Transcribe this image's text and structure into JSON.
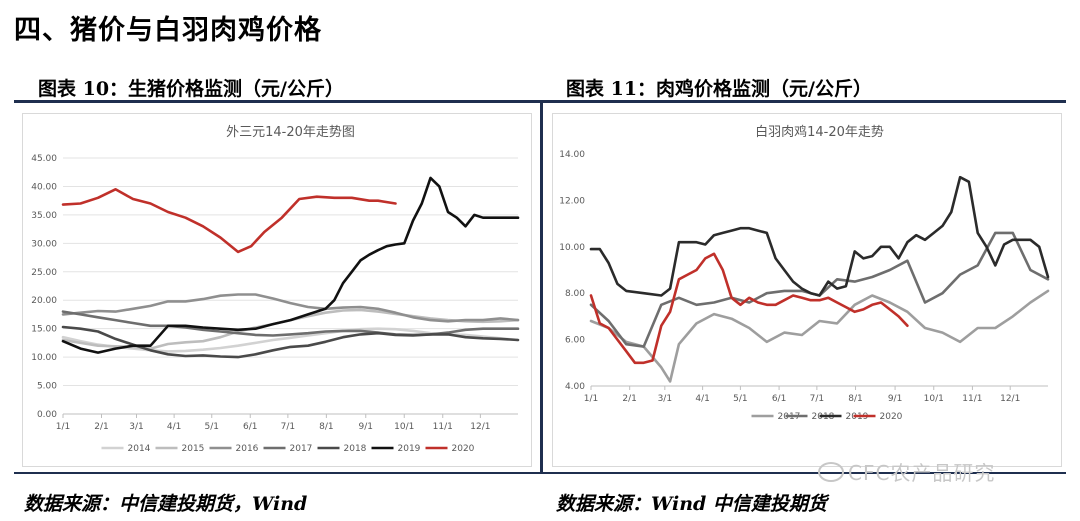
{
  "page": {
    "section_title": "四、猪价与白羽肉鸡价格",
    "watermark": "CFC农产品研究"
  },
  "figures": [
    {
      "caption": "图表 10：生猪价格监测（元/公斤）",
      "source": "数据来源：中信建投期货，Wind"
    },
    {
      "caption": "图表 11：肉鸡价格监测（元/公斤）",
      "source": "数据来源：Wind 中信建投期货"
    }
  ],
  "chart_data": [
    {
      "type": "line",
      "title": "外三元14-20年走势图",
      "ylim": [
        0,
        45
      ],
      "yticks": [
        "0.00",
        "5.00",
        "10.00",
        "15.00",
        "20.00",
        "25.00",
        "30.00",
        "35.00",
        "40.00",
        "45.00"
      ],
      "x_range": [
        0,
        52
      ],
      "xticks": [
        {
          "label": "1/1",
          "x": 0
        },
        {
          "label": "2/1",
          "x": 4.4
        },
        {
          "label": "3/1",
          "x": 8.4
        },
        {
          "label": "4/1",
          "x": 12.7
        },
        {
          "label": "5/1",
          "x": 17
        },
        {
          "label": "6/1",
          "x": 21.4
        },
        {
          "label": "7/1",
          "x": 25.7
        },
        {
          "label": "8/1",
          "x": 30.1
        },
        {
          "label": "9/1",
          "x": 34.6
        },
        {
          "label": "10/1",
          "x": 39
        },
        {
          "label": "11/1",
          "x": 43.4
        },
        {
          "label": "12/1",
          "x": 47.7
        }
      ],
      "grid": true,
      "legend": "bottom",
      "series": [
        {
          "name": "2014",
          "color": "#d2d2d2",
          "x": [
            0,
            2,
            4,
            6,
            8,
            10,
            12,
            14,
            16,
            18,
            20,
            22,
            24,
            26,
            28,
            30,
            32,
            34,
            36,
            38,
            40,
            42,
            44,
            46,
            48,
            50,
            52
          ],
          "values": [
            13.5,
            12.8,
            12.2,
            11.8,
            11.5,
            11.2,
            11.0,
            11.1,
            11.3,
            11.6,
            12.0,
            12.5,
            13.0,
            13.4,
            13.8,
            14.2,
            14.6,
            14.9,
            15.0,
            14.9,
            14.6,
            14.2,
            14.0,
            13.9,
            13.6,
            13.3,
            13.0
          ]
        },
        {
          "name": "2015",
          "color": "#bdbdbd",
          "x": [
            0,
            2,
            4,
            6,
            8,
            10,
            12,
            14,
            16,
            18,
            20,
            22,
            24,
            26,
            28,
            30,
            32,
            34,
            36,
            38,
            40,
            42,
            44,
            46,
            48,
            50,
            52
          ],
          "values": [
            13.0,
            12.5,
            12.0,
            11.9,
            11.8,
            11.5,
            12.3,
            12.6,
            12.8,
            13.5,
            14.5,
            15.2,
            15.8,
            16.5,
            17.2,
            17.8,
            18.2,
            18.3,
            18.0,
            17.6,
            17.2,
            16.8,
            16.5,
            16.3,
            16.2,
            16.3,
            16.5
          ]
        },
        {
          "name": "2016",
          "color": "#8f8f8f",
          "x": [
            0,
            2,
            4,
            6,
            8,
            10,
            12,
            14,
            16,
            18,
            20,
            22,
            24,
            26,
            28,
            30,
            32,
            34,
            36,
            38,
            40,
            42,
            44,
            46,
            48,
            50,
            52
          ],
          "values": [
            17.5,
            17.8,
            18.1,
            18.0,
            18.5,
            19.0,
            19.8,
            19.8,
            20.2,
            20.8,
            21.0,
            21.0,
            20.3,
            19.5,
            18.8,
            18.5,
            18.7,
            18.8,
            18.5,
            17.8,
            17.0,
            16.5,
            16.3,
            16.5,
            16.5,
            16.8,
            16.5
          ]
        },
        {
          "name": "2017",
          "color": "#6e6e6e",
          "x": [
            0,
            2,
            4,
            6,
            8,
            10,
            12,
            14,
            16,
            18,
            20,
            22,
            24,
            26,
            28,
            30,
            32,
            34,
            36,
            38,
            40,
            42,
            44,
            46,
            48,
            50,
            52
          ],
          "values": [
            18.0,
            17.5,
            17.0,
            16.5,
            16.0,
            15.5,
            15.5,
            15.2,
            14.8,
            14.5,
            14.2,
            13.9,
            13.8,
            14.0,
            14.2,
            14.5,
            14.6,
            14.6,
            14.3,
            14.0,
            13.9,
            14.0,
            14.3,
            14.8,
            15.0,
            15.0,
            15.0
          ]
        },
        {
          "name": "2018",
          "color": "#4a4a4a",
          "x": [
            0,
            2,
            4,
            6,
            8,
            10,
            12,
            14,
            16,
            18,
            20,
            22,
            24,
            26,
            28,
            30,
            32,
            34,
            36,
            38,
            40,
            42,
            44,
            46,
            48,
            50,
            52
          ],
          "values": [
            15.3,
            15.0,
            14.5,
            13.2,
            12.2,
            11.2,
            10.5,
            10.2,
            10.3,
            10.1,
            10.0,
            10.5,
            11.2,
            11.8,
            12.0,
            12.7,
            13.5,
            14.0,
            14.2,
            13.9,
            13.8,
            14.0,
            14.0,
            13.5,
            13.3,
            13.2,
            13.0
          ]
        },
        {
          "name": "2019",
          "color": "#111111",
          "x": [
            0,
            2,
            4,
            6,
            8,
            10,
            12,
            14,
            16,
            18,
            20,
            22,
            24,
            26,
            28,
            30,
            31,
            32,
            33,
            34,
            35,
            36,
            37,
            38,
            39,
            40,
            41,
            42,
            43,
            44,
            45,
            46,
            47,
            48,
            49,
            50,
            51,
            52
          ],
          "values": [
            12.8,
            11.5,
            10.8,
            11.5,
            12.0,
            12.0,
            15.5,
            15.5,
            15.2,
            15.0,
            14.8,
            15.0,
            15.8,
            16.5,
            17.5,
            18.5,
            20.0,
            23.0,
            25.0,
            27.0,
            28.0,
            28.8,
            29.5,
            29.8,
            30.0,
            34.0,
            37.0,
            41.5,
            40.0,
            35.5,
            34.5,
            33.0,
            35.0,
            34.5,
            34.5,
            34.5,
            34.5,
            34.5
          ]
        },
        {
          "name": "2020",
          "color": "#c0302a",
          "x": [
            0,
            2,
            4,
            6,
            8,
            10,
            12,
            14,
            16,
            18,
            20,
            21.5,
            23,
            25,
            27,
            29,
            31,
            33,
            35,
            36,
            38
          ],
          "values": [
            36.8,
            37.0,
            38.0,
            39.5,
            37.8,
            37.0,
            35.5,
            34.5,
            33.0,
            31.0,
            28.5,
            29.5,
            32.0,
            34.5,
            37.8,
            38.2,
            38.0,
            38.0,
            37.5,
            37.5,
            37.0
          ]
        }
      ]
    },
    {
      "type": "line",
      "title": "白羽肉鸡14-20年走势",
      "ylim": [
        4,
        14
      ],
      "yticks": [
        "4.00",
        "6.00",
        "8.00",
        "10.00",
        "12.00",
        "14.00"
      ],
      "x_range": [
        0,
        52
      ],
      "xticks": [
        {
          "label": "1/1",
          "x": 0
        },
        {
          "label": "2/1",
          "x": 4.4
        },
        {
          "label": "3/1",
          "x": 8.4
        },
        {
          "label": "4/1",
          "x": 12.7
        },
        {
          "label": "5/1",
          "x": 17
        },
        {
          "label": "6/1",
          "x": 21.4
        },
        {
          "label": "7/1",
          "x": 25.7
        },
        {
          "label": "8/1",
          "x": 30.1
        },
        {
          "label": "9/1",
          "x": 34.6
        },
        {
          "label": "10/1",
          "x": 39
        },
        {
          "label": "11/1",
          "x": 43.4
        },
        {
          "label": "12/1",
          "x": 47.7
        }
      ],
      "grid": false,
      "legend": "bottom",
      "series": [
        {
          "name": "2017",
          "color": "#9e9e9e",
          "x": [
            0,
            2,
            4,
            6,
            8,
            9,
            10,
            12,
            14,
            16,
            18,
            20,
            22,
            24,
            26,
            28,
            30,
            32,
            34,
            36,
            38,
            40,
            42,
            44,
            46,
            48,
            50,
            52
          ],
          "values": [
            6.8,
            6.5,
            5.9,
            5.7,
            4.8,
            4.2,
            5.8,
            6.7,
            7.1,
            6.9,
            6.5,
            5.9,
            6.3,
            6.2,
            6.8,
            6.7,
            7.5,
            7.9,
            7.6,
            7.2,
            6.5,
            6.3,
            5.9,
            6.5,
            6.5,
            7.0,
            7.6,
            8.1
          ]
        },
        {
          "name": "2018",
          "color": "#6e6e6e",
          "x": [
            0,
            2,
            4,
            6,
            8,
            10,
            12,
            14,
            16,
            18,
            20,
            22,
            24,
            26,
            28,
            30,
            32,
            34,
            36,
            38,
            40,
            42,
            44,
            46,
            48,
            50,
            52
          ],
          "values": [
            7.5,
            6.8,
            5.8,
            5.7,
            7.5,
            7.8,
            7.5,
            7.6,
            7.8,
            7.6,
            8.0,
            8.1,
            8.1,
            7.9,
            8.6,
            8.5,
            8.7,
            9.0,
            9.4,
            7.6,
            8.0,
            8.8,
            9.2,
            10.6,
            10.6,
            9.0,
            8.6
          ]
        },
        {
          "name": "2019",
          "color": "#2b2b2b",
          "x": [
            0,
            1,
            2,
            3,
            4,
            6,
            8,
            9,
            10,
            11,
            12,
            13,
            14,
            15,
            16,
            17,
            18,
            19,
            20,
            21,
            22,
            23,
            24,
            25,
            26,
            27,
            28,
            29,
            30,
            31,
            32,
            33,
            34,
            35,
            36,
            37,
            38,
            39,
            40,
            41,
            42,
            43,
            44,
            45,
            46,
            47,
            48,
            49,
            50,
            51,
            52
          ],
          "values": [
            9.9,
            9.9,
            9.3,
            8.4,
            8.1,
            8.0,
            7.9,
            8.2,
            10.2,
            10.2,
            10.2,
            10.1,
            10.5,
            10.6,
            10.7,
            10.8,
            10.8,
            10.7,
            10.6,
            9.5,
            9.0,
            8.5,
            8.2,
            8.0,
            7.9,
            8.5,
            8.2,
            8.3,
            9.8,
            9.5,
            9.6,
            10.0,
            10.0,
            9.5,
            10.2,
            10.5,
            10.3,
            10.6,
            10.9,
            11.5,
            13.0,
            12.8,
            10.6,
            10.0,
            9.2,
            10.1,
            10.3,
            10.3,
            10.3,
            10.0,
            8.7
          ]
        },
        {
          "name": "2020",
          "color": "#c0302a",
          "x": [
            0,
            1,
            2,
            3,
            4,
            5,
            6,
            7,
            8,
            9,
            10,
            11,
            12,
            13,
            14,
            15,
            16,
            17,
            18,
            19,
            20,
            21,
            22,
            23,
            24,
            25,
            26,
            27,
            28,
            29,
            30,
            31,
            32,
            33,
            34,
            35,
            36
          ],
          "values": [
            7.9,
            6.7,
            6.5,
            6.0,
            5.5,
            5.0,
            5.0,
            5.1,
            6.6,
            7.2,
            8.6,
            8.8,
            9.0,
            9.5,
            9.7,
            9.0,
            7.8,
            7.5,
            7.8,
            7.6,
            7.5,
            7.5,
            7.7,
            7.9,
            7.8,
            7.7,
            7.7,
            7.8,
            7.6,
            7.4,
            7.2,
            7.3,
            7.5,
            7.6,
            7.3,
            7.0,
            6.6
          ]
        }
      ]
    }
  ]
}
